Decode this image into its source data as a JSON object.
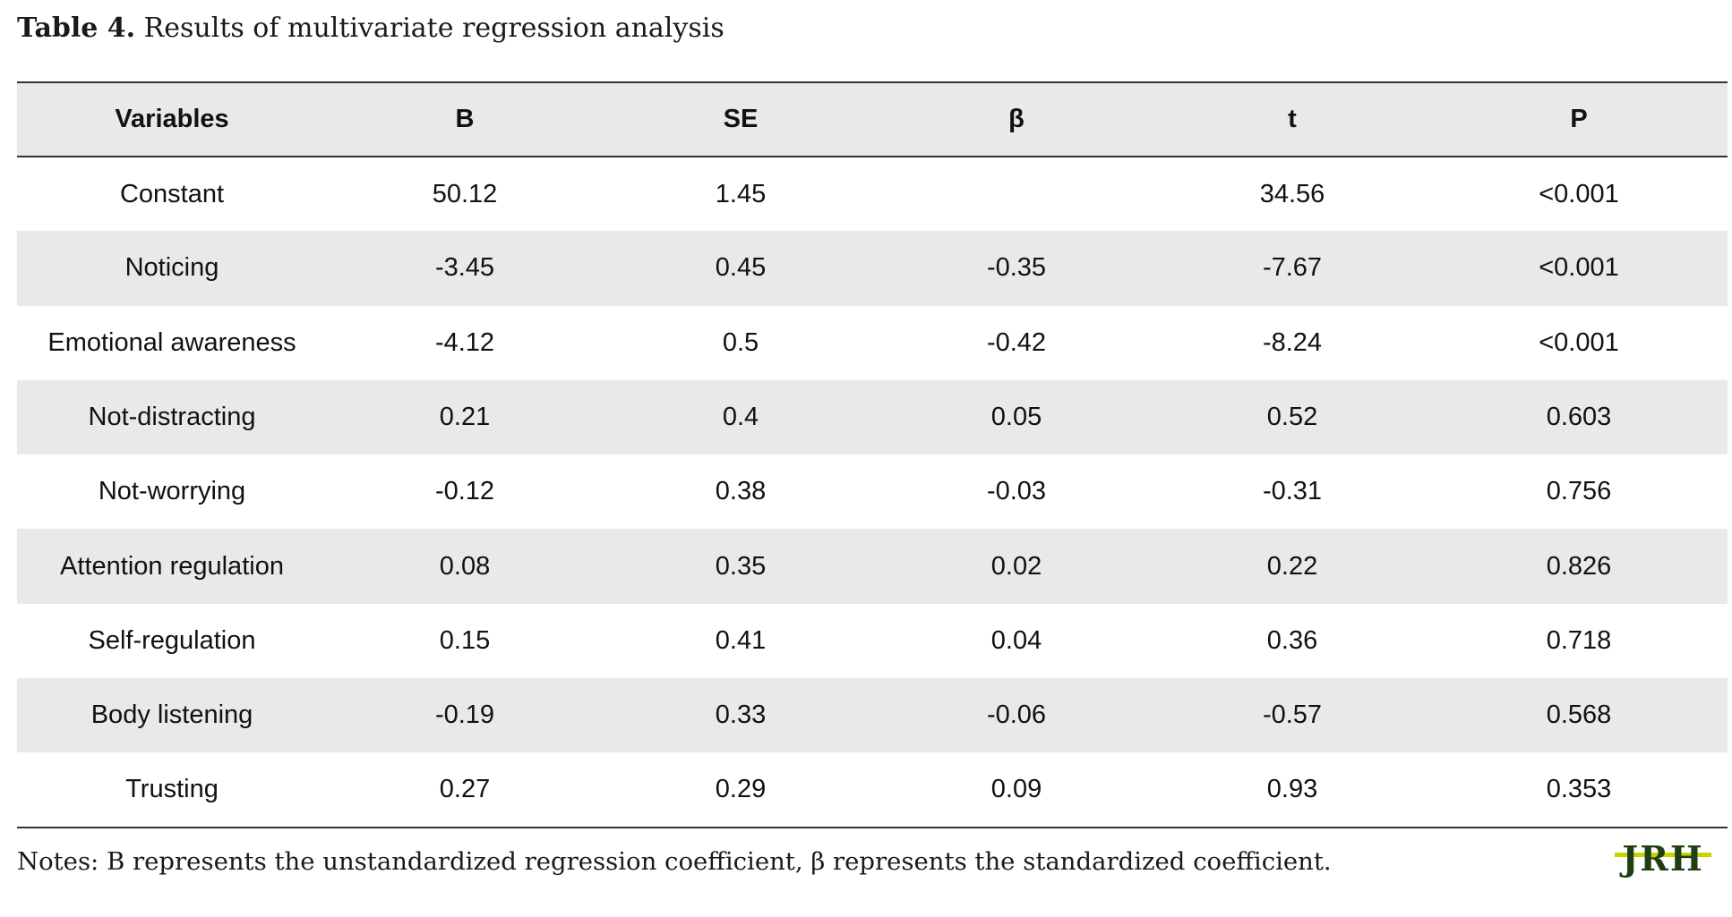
{
  "caption": {
    "label": "Table 4.",
    "text": " Results of multivariate regression analysis"
  },
  "table": {
    "headers": [
      "Variables",
      "B",
      "SE",
      "β",
      "t",
      "P"
    ],
    "rows": [
      [
        "Constant",
        "50.12",
        "1.45",
        "",
        "34.56",
        "<0.001"
      ],
      [
        "Noticing",
        "-3.45",
        "0.45",
        "-0.35",
        "-7.67",
        "<0.001"
      ],
      [
        "Emotional awareness",
        "-4.12",
        "0.5",
        "-0.42",
        "-8.24",
        "<0.001"
      ],
      [
        "Not-distracting",
        "0.21",
        "0.4",
        "0.05",
        "0.52",
        "0.603"
      ],
      [
        "Not-worrying",
        "-0.12",
        "0.38",
        "-0.03",
        "-0.31",
        "0.756"
      ],
      [
        "Attention regulation",
        "0.08",
        "0.35",
        "0.02",
        "0.22",
        "0.826"
      ],
      [
        "Self-regulation",
        "0.15",
        "0.41",
        "0.04",
        "0.36",
        "0.718"
      ],
      [
        "Body listening",
        "-0.19",
        "0.33",
        "-0.06",
        "-0.57",
        "0.568"
      ],
      [
        "Trusting",
        "0.27",
        "0.29",
        "0.09",
        "0.93",
        "0.353"
      ]
    ]
  },
  "notes": "Notes: B represents the unstandardized regression coefficient, β represents the standardized coefficient.",
  "logo": {
    "text": "JRH",
    "color": "#1f3f12",
    "accent": "#c8d400"
  },
  "colors": {
    "shade": "#e9e9e9",
    "rule": "#333333"
  }
}
